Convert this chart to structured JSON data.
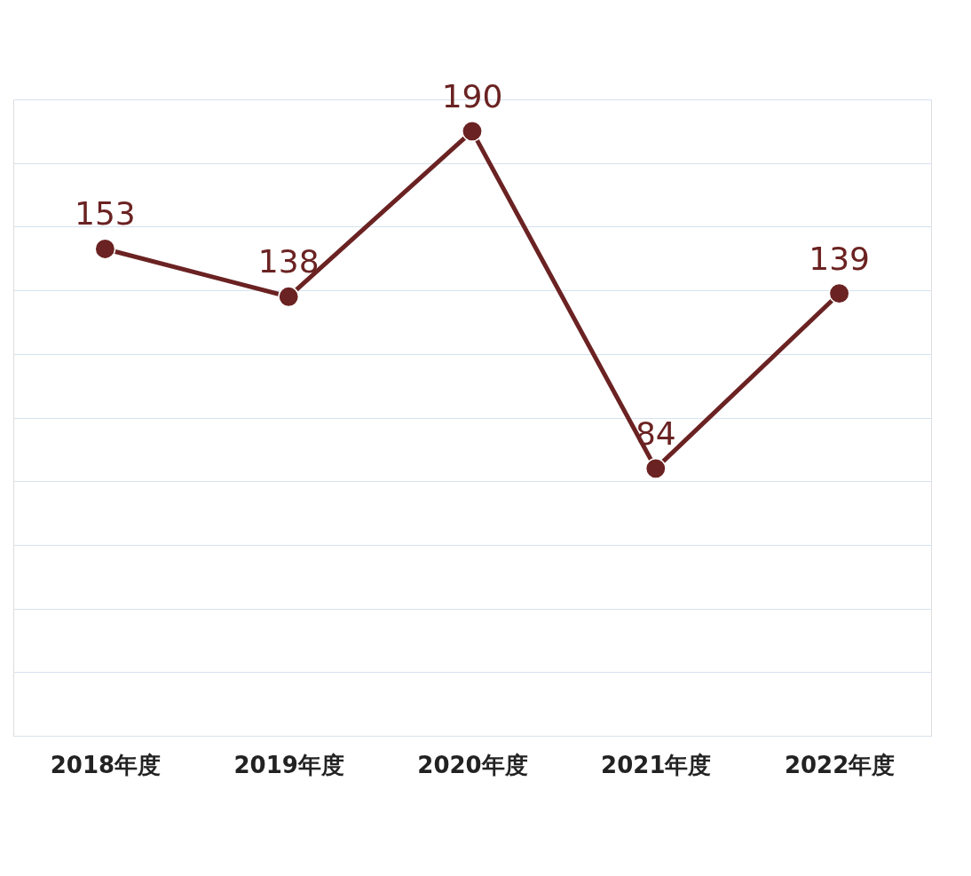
{
  "chart_data": {
    "type": "line",
    "categories": [
      "2018年度",
      "2019年度",
      "2020年度",
      "2021年度",
      "2022年度"
    ],
    "series": [
      {
        "color": "#6b2222",
        "values": [
          153,
          138,
          190,
          84,
          139
        ]
      }
    ],
    "ylim": [
      0,
      200
    ],
    "yticks": [
      {
        "value": 0,
        "label": null
      },
      {
        "value": 20,
        "label": null
      },
      {
        "value": 40,
        "label": null
      },
      {
        "value": 60,
        "label": null
      },
      {
        "value": 80,
        "label": null
      },
      {
        "value": 100,
        "label": null
      },
      {
        "value": 120,
        "label": null
      },
      {
        "value": 140,
        "label": null
      },
      {
        "value": 160,
        "label": null
      },
      {
        "value": 180,
        "label": null
      },
      {
        "value": 200,
        "label": null
      }
    ],
    "grid": "y",
    "marker": "circle",
    "line_style": "solid",
    "data_labels": true
  }
}
